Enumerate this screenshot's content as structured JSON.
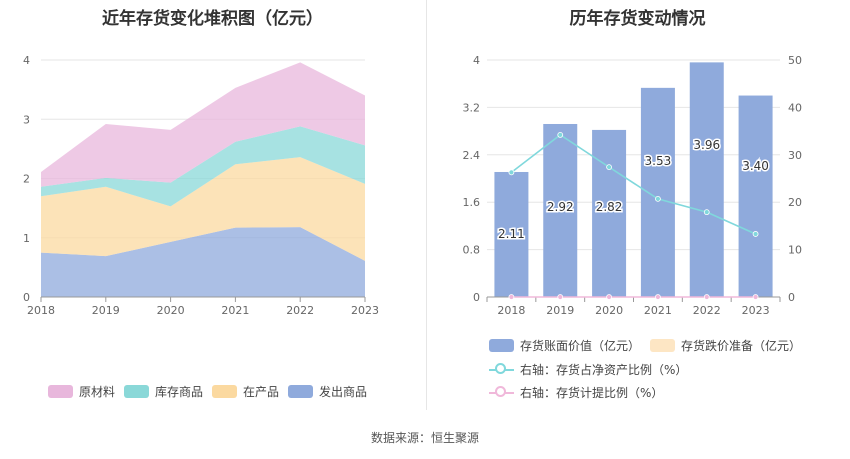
{
  "left_chart": {
    "title": "近年存货变化堆积图（亿元）",
    "legend": [
      {
        "label": "原材料",
        "color": "#e8b7dc"
      },
      {
        "label": "库存商品",
        "color": "#8ad8d8"
      },
      {
        "label": "在产品",
        "color": "#fbd9a0"
      },
      {
        "label": "发出商品",
        "color": "#8faadc"
      }
    ]
  },
  "right_chart": {
    "title": "历年存货变动情况",
    "legend": [
      {
        "label": "存货账面价值（亿元）",
        "color": "#8faadc"
      },
      {
        "label": "存货跌价准备（亿元）",
        "color": "#fde6c4"
      },
      {
        "label": "右轴：存货占净资产比例（%）",
        "color": "#80d8dc"
      },
      {
        "label": "右轴：存货计提比例（%）",
        "color": "#f0b8da"
      }
    ]
  },
  "source": "数据来源：恒生聚源",
  "chart_data": [
    {
      "type": "area",
      "stacked": true,
      "title": "近年存货变化堆积图（亿元）",
      "categories": [
        "2018",
        "2019",
        "2020",
        "2021",
        "2022",
        "2023"
      ],
      "ylim": [
        0,
        4
      ],
      "yticks": [
        "0",
        "1",
        "2",
        "3",
        "4"
      ],
      "series": [
        {
          "name": "发出商品",
          "values": [
            0.75,
            0.69,
            0.93,
            1.17,
            1.18,
            0.61
          ]
        },
        {
          "name": "在产品",
          "values": [
            0.95,
            1.17,
            0.6,
            1.07,
            1.18,
            1.3
          ]
        },
        {
          "name": "库存商品",
          "values": [
            0.16,
            0.15,
            0.4,
            0.38,
            0.52,
            0.65
          ]
        },
        {
          "name": "原材料",
          "values": [
            0.25,
            0.91,
            0.89,
            0.91,
            1.08,
            0.84
          ]
        }
      ]
    },
    {
      "type": "bar",
      "title": "历年存货变动情况",
      "categories": [
        "2018",
        "2019",
        "2020",
        "2021",
        "2022",
        "2023"
      ],
      "ylim": [
        0,
        4
      ],
      "yticks": [
        "0",
        "0.8",
        "1.6",
        "2.4",
        "3.2",
        "4"
      ],
      "y2lim": [
        0,
        50
      ],
      "y2ticks": [
        "0",
        "10",
        "20",
        "30",
        "40",
        "50"
      ],
      "series": [
        {
          "name": "存货账面价值（亿元）",
          "axis": "left",
          "kind": "bar",
          "values": [
            2.11,
            2.92,
            2.82,
            3.53,
            3.96,
            3.4
          ],
          "labels": [
            "2.11",
            "2.92",
            "2.82",
            "3.53",
            "3.96",
            "3.40"
          ]
        },
        {
          "name": "存货跌价准备（亿元）",
          "axis": "left",
          "kind": "bar",
          "values": [
            0,
            0,
            0,
            0,
            0,
            0
          ]
        },
        {
          "name": "右轴：存货占净资产比例（%）",
          "axis": "right",
          "kind": "line",
          "values": [
            26.3,
            34.2,
            27.4,
            20.7,
            17.9,
            13.3
          ]
        },
        {
          "name": "右轴：存货计提比例（%）",
          "axis": "right",
          "kind": "line",
          "values": [
            0,
            0,
            0,
            0,
            0,
            0
          ]
        }
      ]
    }
  ]
}
